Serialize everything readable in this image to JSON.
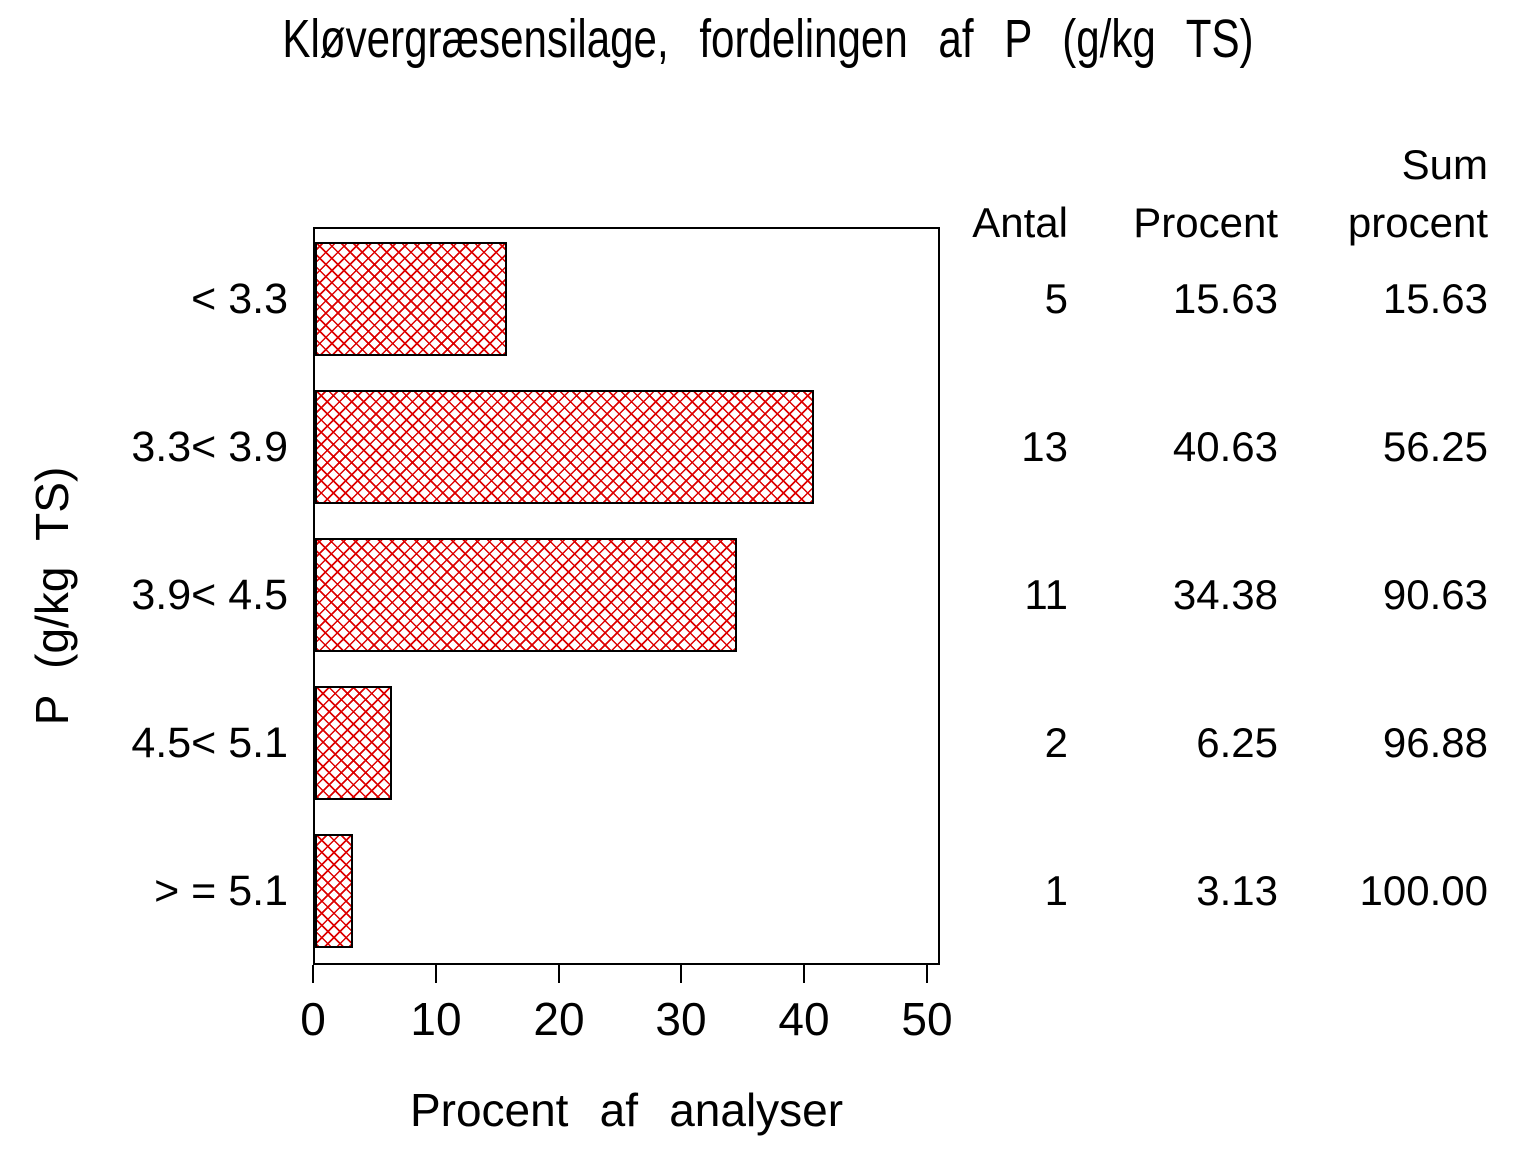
{
  "title": "Kløvergræsensilage, fordelingen af P (g/kg TS)",
  "chart_data": {
    "type": "bar",
    "orientation": "horizontal",
    "title": "Kløvergræsensilage, fordelingen af P (g/kg TS)",
    "categories": [
      "< 3.3",
      "3.3< 3.9",
      "3.9< 4.5",
      "4.5< 5.1",
      "> = 5.1"
    ],
    "values": [
      15.63,
      40.63,
      34.38,
      6.25,
      3.13
    ],
    "counts": [
      5,
      13,
      11,
      2,
      1
    ],
    "cumulative_percent": [
      15.63,
      56.25,
      90.63,
      96.88,
      100.0
    ],
    "xlabel": "Procent af analyser",
    "ylabel": "P (g/kg TS)",
    "xlim": [
      0,
      51
    ],
    "xticks": [
      0,
      10,
      20,
      30,
      40,
      50
    ],
    "grid": false,
    "bar_style": "red diagonal crosshatch, black outline",
    "hatch_color": "#dd0000",
    "frame_color": "#000000"
  },
  "table": {
    "header": {
      "antal": "Antal",
      "procent": "Procent",
      "sum_line1": "Sum",
      "sum_line2": "procent"
    },
    "rows": [
      {
        "antal": "5",
        "procent": "15.63",
        "sum_procent": "15.63"
      },
      {
        "antal": "13",
        "procent": "40.63",
        "sum_procent": "56.25"
      },
      {
        "antal": "11",
        "procent": "34.38",
        "sum_procent": "90.63"
      },
      {
        "antal": "2",
        "procent": "6.25",
        "sum_procent": "96.88"
      },
      {
        "antal": "1",
        "procent": "3.13",
        "sum_procent": "100.00"
      }
    ]
  }
}
